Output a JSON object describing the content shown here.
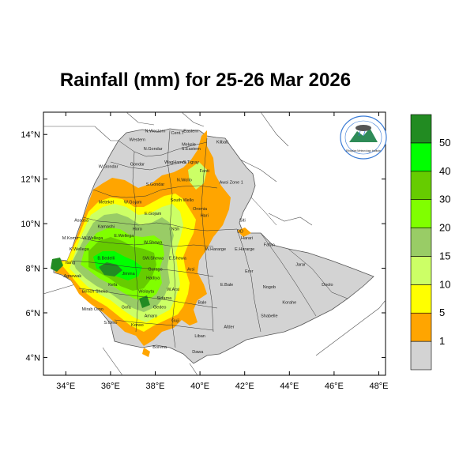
{
  "map": {
    "title": "Rainfall (mm) for 25-26 Mar 2026",
    "lat_ticks": [
      "4°N",
      "6°N",
      "8°N",
      "10°N",
      "12°N",
      "14°N"
    ],
    "lon_ticks": [
      "34°E",
      "36°E",
      "38°E",
      "40°E",
      "42°E",
      "44°E",
      "46°E",
      "48°E"
    ],
    "lat_range": [
      3.2,
      15.0
    ],
    "lon_range": [
      33.0,
      48.3
    ],
    "colorbar": {
      "labels": [
        "1",
        "5",
        "10",
        "15",
        "20",
        "30",
        "40",
        "50"
      ],
      "colors": [
        "#d3d3d3",
        "#ffa500",
        "#ffff00",
        "#ccff66",
        "#99cc66",
        "#80ff00",
        "#66cc00",
        "#00ff00",
        "#228b22"
      ]
    },
    "logo_text": "Ethiopian Meteorology Institute",
    "regions": [
      {
        "name": "Western",
        "lon": 37.2,
        "lat": 13.7
      },
      {
        "name": "N.Western",
        "lon": 38.0,
        "lat": 14.1
      },
      {
        "name": "Cent.T",
        "lon": 39.0,
        "lat": 14.0
      },
      {
        "name": "Eastern",
        "lon": 39.6,
        "lat": 14.1
      },
      {
        "name": "Mekele",
        "lon": 39.5,
        "lat": 13.5
      },
      {
        "name": "S.Eastern",
        "lon": 39.6,
        "lat": 13.3
      },
      {
        "name": "N.Gondar",
        "lon": 37.9,
        "lat": 13.3
      },
      {
        "name": "Kilbati",
        "lon": 41.0,
        "lat": 13.6
      },
      {
        "name": "WagHamra",
        "lon": 38.9,
        "lat": 12.7
      },
      {
        "name": "S.Tigray",
        "lon": 39.6,
        "lat": 12.7
      },
      {
        "name": "W.Gondar",
        "lon": 35.9,
        "lat": 12.5
      },
      {
        "name": "Gondar",
        "lon": 37.2,
        "lat": 12.6
      },
      {
        "name": "Fanti",
        "lon": 40.2,
        "lat": 12.3
      },
      {
        "name": "N.Wollo",
        "lon": 39.3,
        "lat": 11.9
      },
      {
        "name": "S.Gondar",
        "lon": 38.0,
        "lat": 11.7
      },
      {
        "name": "Awsi Zone 1",
        "lon": 41.4,
        "lat": 11.8
      },
      {
        "name": "Metekel",
        "lon": 35.8,
        "lat": 10.9
      },
      {
        "name": "W.Gojam",
        "lon": 37.0,
        "lat": 10.9
      },
      {
        "name": "South Wello",
        "lon": 39.2,
        "lat": 11.0
      },
      {
        "name": "Oromia",
        "lon": 40.0,
        "lat": 10.6
      },
      {
        "name": "E.Gojam",
        "lon": 37.9,
        "lat": 10.4
      },
      {
        "name": "Hari",
        "lon": 40.2,
        "lat": 10.3
      },
      {
        "name": "Siti",
        "lon": 41.9,
        "lat": 10.1
      },
      {
        "name": "Assosa",
        "lon": 34.7,
        "lat": 10.1
      },
      {
        "name": "Kamashi",
        "lon": 35.8,
        "lat": 9.8
      },
      {
        "name": "Horo",
        "lon": 37.2,
        "lat": 9.7
      },
      {
        "name": "NSh",
        "lon": 38.9,
        "lat": 9.7
      },
      {
        "name": "DD",
        "lon": 41.8,
        "lat": 9.6
      },
      {
        "name": "Harari",
        "lon": 42.1,
        "lat": 9.3
      },
      {
        "name": "Fafan",
        "lon": 43.1,
        "lat": 9.0
      },
      {
        "name": "M.Komo",
        "lon": 34.2,
        "lat": 9.3
      },
      {
        "name": "W.Wellega",
        "lon": 35.2,
        "lat": 9.3
      },
      {
        "name": "E.Wellega",
        "lon": 36.6,
        "lat": 9.4
      },
      {
        "name": "W.Shewa",
        "lon": 37.9,
        "lat": 9.1
      },
      {
        "name": "W.Hararge",
        "lon": 40.7,
        "lat": 8.8
      },
      {
        "name": "E.Hararge",
        "lon": 42.0,
        "lat": 8.8
      },
      {
        "name": "K.Wellega",
        "lon": 34.6,
        "lat": 8.8
      },
      {
        "name": "Jarar",
        "lon": 44.5,
        "lat": 8.1
      },
      {
        "name": "B.Bedelli",
        "lon": 35.8,
        "lat": 8.4
      },
      {
        "name": "SW.Shewa",
        "lon": 37.9,
        "lat": 8.4
      },
      {
        "name": "E.Shewa",
        "lon": 39.0,
        "lat": 8.4
      },
      {
        "name": "Itang",
        "lon": 34.2,
        "lat": 8.2
      },
      {
        "name": "Arsi",
        "lon": 39.6,
        "lat": 7.9
      },
      {
        "name": "Erer",
        "lon": 42.2,
        "lat": 7.8
      },
      {
        "name": "Jimma",
        "lon": 36.8,
        "lat": 7.7
      },
      {
        "name": "Gurage",
        "lon": 38.0,
        "lat": 7.9
      },
      {
        "name": "Agnewak",
        "lon": 34.3,
        "lat": 7.6
      },
      {
        "name": "Hadiya",
        "lon": 37.9,
        "lat": 7.5
      },
      {
        "name": "E.Bale",
        "lon": 41.2,
        "lat": 7.2
      },
      {
        "name": "Nogob",
        "lon": 43.1,
        "lat": 7.1
      },
      {
        "name": "Doolo",
        "lon": 45.7,
        "lat": 7.2
      },
      {
        "name": "Kefa",
        "lon": 36.1,
        "lat": 7.2
      },
      {
        "name": "Bench Sheko",
        "lon": 35.3,
        "lat": 6.9
      },
      {
        "name": "Wolayta",
        "lon": 37.6,
        "lat": 6.9
      },
      {
        "name": "W.Arsi",
        "lon": 38.8,
        "lat": 7.0
      },
      {
        "name": "Sidama",
        "lon": 38.4,
        "lat": 6.6
      },
      {
        "name": "Korahe",
        "lon": 44.0,
        "lat": 6.4
      },
      {
        "name": "Bale",
        "lon": 40.1,
        "lat": 6.4
      },
      {
        "name": "Mirab Omo",
        "lon": 35.2,
        "lat": 6.1
      },
      {
        "name": "Gofa",
        "lon": 36.7,
        "lat": 6.2
      },
      {
        "name": "Gedeo",
        "lon": 38.2,
        "lat": 6.2
      },
      {
        "name": "Shabelle",
        "lon": 43.1,
        "lat": 5.8
      },
      {
        "name": "Amaro",
        "lon": 37.8,
        "lat": 5.8
      },
      {
        "name": "Guji",
        "lon": 38.9,
        "lat": 5.6
      },
      {
        "name": "S.Omo",
        "lon": 36.0,
        "lat": 5.5
      },
      {
        "name": "Konso",
        "lon": 37.2,
        "lat": 5.4
      },
      {
        "name": "Liban",
        "lon": 40.0,
        "lat": 4.9
      },
      {
        "name": "Afder",
        "lon": 41.3,
        "lat": 5.3
      },
      {
        "name": "Borena",
        "lon": 38.2,
        "lat": 4.4
      },
      {
        "name": "Dawa",
        "lon": 39.9,
        "lat": 4.2
      }
    ]
  }
}
